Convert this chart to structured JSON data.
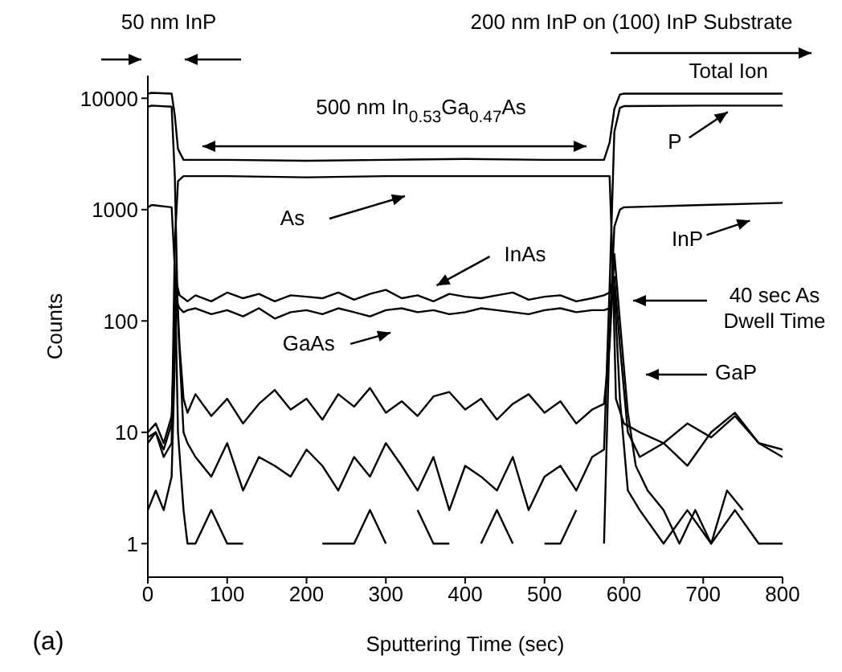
{
  "chart_data": {
    "type": "line",
    "xlabel": "Sputtering Time (sec)",
    "ylabel": "Counts",
    "xlim": [
      0,
      800
    ],
    "xticks": [
      0,
      100,
      200,
      300,
      400,
      500,
      600,
      700,
      800
    ],
    "ylim": [
      0.5,
      16000
    ],
    "yticks": [
      1,
      10,
      100,
      1000,
      10000
    ],
    "log": true,
    "series": [
      {
        "color": "#000000",
        "x": [
          0,
          5,
          30,
          34,
          38,
          45,
          100,
          200,
          300,
          400,
          500,
          575,
          582,
          588,
          595,
          600,
          700,
          800
        ],
        "values": [
          11000,
          11200,
          11000,
          7000,
          3500,
          2800,
          2800,
          2750,
          2800,
          2850,
          2800,
          2800,
          4000,
          8000,
          10800,
          11000,
          11000,
          11000
        ]
      },
      {
        "color": "#000000",
        "x": [
          0,
          5,
          30,
          34,
          38,
          45,
          50,
          60,
          80,
          100,
          120,
          140,
          160,
          180,
          200,
          220,
          240,
          260,
          280,
          300,
          320,
          340,
          360,
          380,
          400,
          420,
          440,
          460,
          480,
          500,
          520,
          540,
          560,
          575,
          582,
          588,
          595,
          600,
          700,
          800
        ],
        "values": [
          8400,
          8600,
          8400,
          2000,
          100,
          10,
          8,
          6,
          4,
          8,
          3,
          6,
          5,
          4,
          7,
          5,
          3,
          6,
          4,
          8,
          5,
          3,
          6,
          2,
          5,
          4,
          3,
          6,
          2,
          4,
          5,
          3,
          6,
          7,
          200,
          5000,
          8200,
          8500,
          8600,
          8600
        ]
      },
      {
        "color": "#000000",
        "x": [
          0,
          10,
          20,
          30,
          34,
          38,
          45,
          100,
          200,
          300,
          400,
          500,
          575,
          582,
          586,
          590,
          600,
          620,
          650,
          680,
          710,
          740,
          770,
          800
        ],
        "values": [
          9,
          10,
          6,
          8,
          500,
          1800,
          2000,
          2000,
          1950,
          2000,
          2000,
          2000,
          2000,
          2000,
          300,
          20,
          12,
          10,
          8,
          12,
          9,
          14,
          8,
          7
        ]
      },
      {
        "color": "#000000",
        "x": [
          0,
          5,
          30,
          34,
          38,
          45,
          50,
          60,
          80,
          100,
          120,
          140,
          160,
          180,
          200,
          220,
          240,
          260,
          280,
          300,
          320,
          340,
          360,
          380,
          400,
          420,
          440,
          460,
          480,
          500,
          520,
          540,
          560,
          575,
          582,
          588,
          595,
          600,
          700,
          800
        ],
        "values": [
          1050,
          1100,
          1050,
          300,
          10,
          2,
          1,
          1,
          2,
          1,
          1,
          null,
          null,
          null,
          null,
          1,
          1,
          1,
          2,
          1,
          null,
          2,
          1,
          1,
          null,
          1,
          2,
          1,
          null,
          1,
          1,
          2,
          null,
          1,
          80,
          700,
          1000,
          1050,
          1100,
          1150
        ]
      },
      {
        "color": "#000000",
        "x": [
          0,
          10,
          20,
          30,
          36,
          40,
          45,
          50,
          60,
          80,
          100,
          120,
          140,
          160,
          180,
          200,
          220,
          240,
          260,
          280,
          300,
          320,
          340,
          360,
          380,
          400,
          420,
          440,
          460,
          480,
          500,
          520,
          540,
          560,
          575,
          582,
          588,
          595,
          605,
          620,
          650,
          680,
          710,
          740,
          770,
          800
        ],
        "values": [
          10,
          12,
          8,
          14,
          220,
          170,
          160,
          150,
          170,
          150,
          180,
          160,
          175,
          150,
          170,
          165,
          160,
          180,
          155,
          175,
          190,
          160,
          170,
          150,
          175,
          165,
          160,
          170,
          180,
          155,
          165,
          170,
          150,
          160,
          170,
          180,
          250,
          60,
          10,
          6,
          8,
          5,
          10,
          15,
          8,
          6
        ]
      },
      {
        "color": "#000000",
        "x": [
          0,
          10,
          20,
          30,
          36,
          40,
          45,
          50,
          60,
          80,
          100,
          120,
          140,
          160,
          180,
          200,
          220,
          240,
          260,
          280,
          300,
          320,
          340,
          360,
          380,
          400,
          420,
          440,
          460,
          480,
          500,
          520,
          540,
          560,
          575,
          582,
          588,
          595,
          605,
          620,
          650,
          680,
          710,
          740,
          770,
          800
        ],
        "values": [
          2,
          3,
          2,
          4,
          150,
          130,
          120,
          125,
          130,
          115,
          125,
          110,
          130,
          105,
          120,
          125,
          115,
          130,
          120,
          110,
          125,
          130,
          120,
          125,
          115,
          120,
          130,
          125,
          120,
          115,
          125,
          130,
          120,
          125,
          125,
          130,
          200,
          20,
          3,
          2,
          1,
          2,
          1,
          2,
          1,
          1
        ]
      },
      {
        "color": "#000000",
        "x": [
          0,
          10,
          20,
          30,
          36,
          40,
          45,
          50,
          60,
          80,
          100,
          120,
          140,
          160,
          180,
          200,
          220,
          240,
          260,
          280,
          300,
          320,
          340,
          360,
          380,
          400,
          420,
          440,
          460,
          480,
          500,
          520,
          540,
          560,
          575,
          582,
          588,
          595,
          605,
          615,
          630,
          650,
          670,
          690,
          710,
          730,
          750
        ],
        "values": [
          8,
          10,
          7,
          12,
          250,
          60,
          20,
          15,
          22,
          14,
          20,
          12,
          18,
          24,
          16,
          20,
          13,
          22,
          17,
          25,
          15,
          19,
          14,
          21,
          23,
          16,
          20,
          13,
          18,
          22,
          15,
          19,
          12,
          16,
          18,
          60,
          400,
          100,
          15,
          5,
          3,
          2,
          1,
          2,
          1,
          3,
          2
        ]
      }
    ],
    "annotations": [
      {
        "text": "Total Ion",
        "x": 740,
        "y": 11000
      },
      {
        "text": "P",
        "x": 735,
        "y": 8600
      },
      {
        "text": "InP",
        "x": 759,
        "y": 1150
      },
      {
        "text": "InAs",
        "x": 360,
        "y": 165
      },
      {
        "text": "GaAs",
        "x": 306,
        "y": 125
      },
      "As",
      "40 sec As\nDwell Time",
      "GaP",
      "50 nm InP",
      "200 nm InP on (100) InP Substrate",
      "500 nm In$_{0.53}$Ga$_{0.47}$As",
      "(a)"
    ]
  }
}
